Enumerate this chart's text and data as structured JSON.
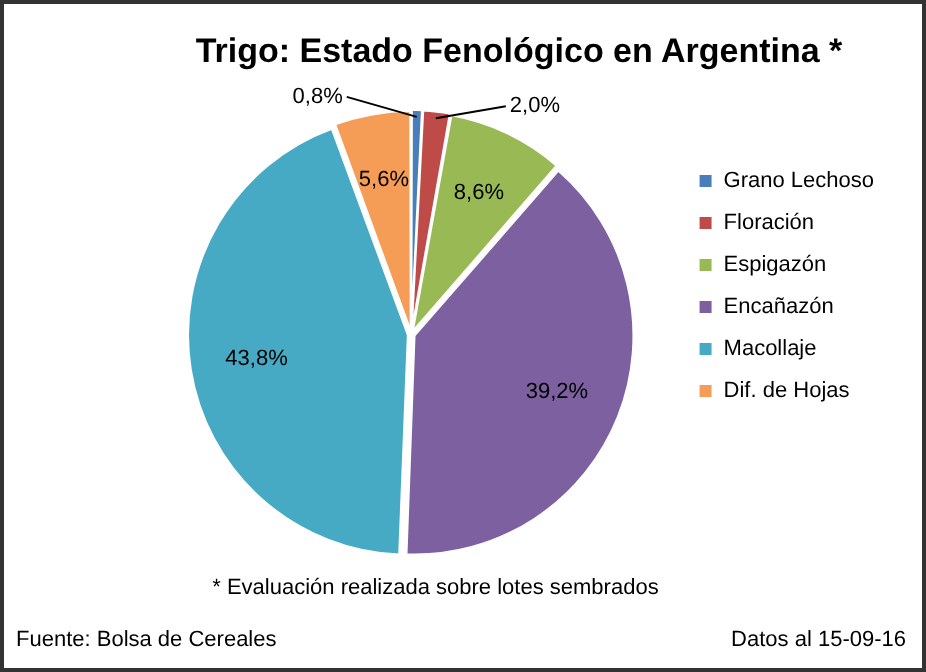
{
  "chart_data": {
    "type": "pie",
    "title": "Trigo: Estado Fenológico en Argentina *",
    "categories": [
      "Grano Lechoso",
      "Floración",
      "Espigazón",
      "Encañazón",
      "Macollaje",
      "Dif. de Hojas"
    ],
    "values": [
      0.8,
      2.0,
      8.6,
      39.2,
      43.8,
      5.6
    ],
    "value_labels": [
      "0,8%",
      "2,0%",
      "8,6%",
      "39,2%",
      "43,8%",
      "5,6%"
    ],
    "colors": [
      "#4a7ebb",
      "#be4b48",
      "#98b954",
      "#7d60a0",
      "#46aac5",
      "#f59d56"
    ],
    "legend": "right",
    "annotations": [
      "* Evaluación realizada sobre lotes sembrados",
      "Fuente: Bolsa de Cereales",
      "Datos al 15-09-16"
    ]
  }
}
